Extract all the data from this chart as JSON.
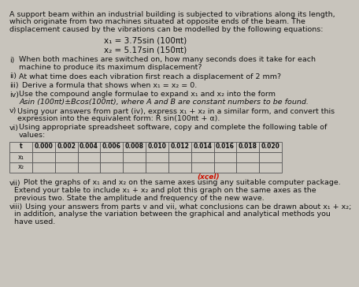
{
  "bg_color": "#c8c4bc",
  "text_color": "#111111",
  "title_line1": "A support beam within an industrial building is subjected to vibrations along its length,",
  "title_line2": "which originate from two machines situated at opposite ends of the beam. The",
  "title_line3": "displacement caused by the vibrations can be modelled by the following equations:",
  "eq1": "x₁ = 3.75sin (100πt)",
  "eq2": "x₂ = 5.17sin (150πt)",
  "part_i_label": "i)",
  "part_i_text1": "When both machines are switched on, how many seconds does it take for each",
  "part_i_text2": "machine to produce its maximum displacement?",
  "part_ii_label": "ii)",
  "part_ii_text": "At what time does each vibration first reach a displacement of 2 mm?",
  "part_iii_label": "iii)",
  "part_iii_text": "Derive a formula that shows when x₁ = x₂ = 0.",
  "part_iv_label": "iv)",
  "part_iv_text1": "Use the compound angle formulae to expand x₁ and x₂ into the form",
  "part_iv_text2": "Asin (100πt)±Bcos(100πt), where A and B are constant numbers to be found.",
  "part_v_label": "v)",
  "part_v_text1": "Using your answers from part (iv), express x₁ + x₂ in a similar form, and convert this",
  "part_v_text2": "expression into the equivalent form: R sin(100πt + α).",
  "part_vi_label": "vi)",
  "part_vi_text1": "Using appropriate spreadsheet software, copy and complete the following table of",
  "part_vi_text2": "values:",
  "table_headers": [
    "t",
    "0.000",
    "0.002",
    "0.004",
    "0.006",
    "0.008",
    "0.010",
    "0.012",
    "0.014",
    "0.016",
    "0.018",
    "0.020"
  ],
  "row1_label": "x₁",
  "row2_label": "x₂",
  "excel_text": "(xcel)",
  "excel_color": "#cc1100",
  "part_vii_label": "vii)",
  "part_vii_text1": "Plot the graphs of x₁ and x₂ on the same axes using any suitable computer package.",
  "part_vii_text2": "Extend your table to include x₁ + x₂ and plot this graph on the same axes as the",
  "part_vii_text3": "previous two. State the amplitude and frequency of the new wave.",
  "part_viii_label": "viii)",
  "part_viii_text1": "Using your answers from parts v and vii, what conclusions can be drawn about x₁ + x₂;",
  "part_viii_text2": "in addition, analyse the variation between the graphical and analytical methods you",
  "part_viii_text3": "have used.",
  "cell_color": "#ccc8c0",
  "cell_border": "#555555",
  "table_bg": "#bcb8b0"
}
